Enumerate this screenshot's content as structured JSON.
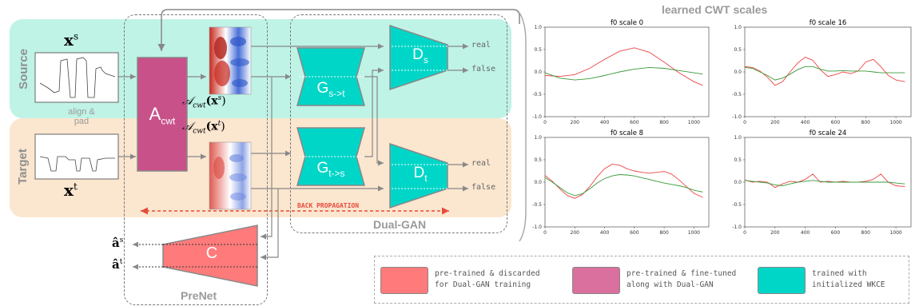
{
  "bands": {
    "source_label": "Source",
    "target_label": "Target"
  },
  "align_label": "align &\npad",
  "acwt_block": {
    "main": "A",
    "sub": "cwt"
  },
  "acwt_source_math": {
    "a": "𝒜",
    "sub": "cwt",
    "arg": "(x",
    "sup": "s",
    "close": ")"
  },
  "acwt_target_math": {
    "a": "𝒜",
    "sub": "cwt",
    "arg": "(x",
    "sup": "t",
    "close": ")"
  },
  "x_source": {
    "base": "x",
    "sup": "s"
  },
  "x_target": {
    "base": "x",
    "sup": "t"
  },
  "gen_st": {
    "main": "G",
    "sub": "s->t"
  },
  "gen_ts": {
    "main": "G",
    "sub": "t->s"
  },
  "disc_s": {
    "main": "D",
    "sub": "s"
  },
  "disc_t": {
    "main": "D",
    "sub": "t"
  },
  "outputs": {
    "real": "real",
    "false": "false"
  },
  "back_propagation": "BACK PROPAGATION",
  "dual_gan": "Dual-GAN",
  "prenet": "PreNet",
  "classifier": "C",
  "a_hat_s": {
    "base": "â",
    "sup": "s"
  },
  "a_hat_t": {
    "base": "â",
    "sup": "t"
  },
  "legend": [
    {
      "color": "#ff7b7b",
      "text": "pre-trained & discarded\nfor Dual-GAN training"
    },
    {
      "color": "#d9709e",
      "text": "pre-trained & fine-tuned\nalong with Dual-GAN"
    },
    {
      "color": "#00d6c8",
      "text": "trained with\ninitialized WKCE"
    }
  ],
  "colors": {
    "source_band": "#bff3e6",
    "target_band": "#fbe6cf",
    "acwt": "#c9518a",
    "generator": "#00d6c8",
    "classifier": "#ff7b7b",
    "backprop": "#e84a3a",
    "line_red": "#ee4444",
    "line_green": "#3a9a3a"
  },
  "chart_group_title": "learned CWT scales",
  "chart_data": [
    {
      "type": "line",
      "title": "f0 scale 0",
      "xlim": [
        0,
        1100
      ],
      "ylim": [
        -1.0,
        1.0
      ],
      "xticks": [
        0,
        200,
        400,
        600,
        800,
        1000
      ],
      "yticks": [
        -1.0,
        -0.5,
        0.0,
        0.5,
        1.0
      ],
      "x": [
        0,
        100,
        200,
        300,
        400,
        500,
        600,
        700,
        800,
        900,
        1000,
        1060
      ],
      "series": [
        {
          "color": "red",
          "values": [
            -0.08,
            -0.1,
            -0.06,
            0.08,
            0.28,
            0.46,
            0.54,
            0.44,
            0.22,
            -0.02,
            -0.22,
            -0.3
          ]
        },
        {
          "color": "green",
          "values": [
            -0.02,
            -0.14,
            -0.18,
            -0.15,
            -0.08,
            0.0,
            0.06,
            0.1,
            0.08,
            0.03,
            -0.02,
            -0.05
          ]
        }
      ]
    },
    {
      "type": "line",
      "title": "f0 scale 16",
      "xlim": [
        0,
        1100
      ],
      "ylim": [
        -1.0,
        1.0
      ],
      "xticks": [
        0,
        200,
        400,
        600,
        800,
        1000
      ],
      "yticks": [
        -1.0,
        -0.5,
        0.0,
        0.5,
        1.0
      ],
      "x": [
        0,
        50,
        100,
        150,
        200,
        250,
        300,
        350,
        400,
        450,
        500,
        550,
        600,
        650,
        700,
        750,
        800,
        850,
        900,
        950,
        1000,
        1060
      ],
      "series": [
        {
          "color": "red",
          "values": [
            0.12,
            0.1,
            0.02,
            -0.12,
            -0.3,
            -0.22,
            0.0,
            0.2,
            0.33,
            0.26,
            0.05,
            -0.1,
            -0.06,
            0.0,
            -0.04,
            0.02,
            0.22,
            0.28,
            0.12,
            -0.08,
            -0.18,
            -0.22
          ]
        },
        {
          "color": "green",
          "values": [
            0.1,
            0.08,
            0.0,
            -0.08,
            -0.18,
            -0.14,
            -0.05,
            0.05,
            0.12,
            0.12,
            0.06,
            0.02,
            0.02,
            0.03,
            0.02,
            0.02,
            0.02,
            0.0,
            -0.02,
            -0.02,
            -0.02,
            -0.02
          ]
        }
      ]
    },
    {
      "type": "line",
      "title": "f0 scale 8",
      "xlim": [
        0,
        1100
      ],
      "ylim": [
        -1.0,
        1.0
      ],
      "xticks": [
        0,
        200,
        400,
        600,
        800,
        1000
      ],
      "yticks": [
        -1.0,
        -0.5,
        0.0,
        0.5,
        1.0
      ],
      "x": [
        0,
        50,
        100,
        150,
        200,
        250,
        300,
        350,
        400,
        450,
        500,
        550,
        600,
        650,
        700,
        750,
        800,
        850,
        900,
        950,
        1000,
        1060
      ],
      "series": [
        {
          "color": "red",
          "values": [
            0.15,
            0.02,
            -0.15,
            -0.3,
            -0.36,
            -0.28,
            -0.1,
            0.12,
            0.3,
            0.4,
            0.38,
            0.3,
            0.25,
            0.22,
            0.2,
            0.22,
            0.24,
            0.18,
            0.05,
            -0.1,
            -0.25,
            -0.34
          ]
        },
        {
          "color": "green",
          "values": [
            0.1,
            0.0,
            -0.12,
            -0.24,
            -0.3,
            -0.26,
            -0.15,
            -0.02,
            0.08,
            0.14,
            0.17,
            0.16,
            0.14,
            0.1,
            0.06,
            0.02,
            -0.02,
            -0.05,
            -0.08,
            -0.12,
            -0.18,
            -0.22
          ]
        }
      ]
    },
    {
      "type": "line",
      "title": "f0 scale 24",
      "xlim": [
        0,
        1100
      ],
      "ylim": [
        -1.0,
        1.0
      ],
      "xticks": [
        0,
        200,
        400,
        600,
        800,
        1000
      ],
      "yticks": [
        -1.0,
        -0.5,
        0.0,
        0.5,
        1.0
      ],
      "x": [
        0,
        50,
        100,
        150,
        200,
        250,
        300,
        350,
        400,
        450,
        500,
        550,
        600,
        650,
        700,
        750,
        800,
        850,
        900,
        950,
        1000,
        1060
      ],
      "series": [
        {
          "color": "red",
          "values": [
            0.05,
            0.0,
            0.02,
            0.0,
            -0.12,
            -0.04,
            0.02,
            0.0,
            0.06,
            0.18,
            0.0,
            0.02,
            0.0,
            0.02,
            0.0,
            0.0,
            0.02,
            0.06,
            0.18,
            0.0,
            -0.08,
            -0.1
          ]
        },
        {
          "color": "green",
          "values": [
            0.04,
            0.02,
            0.0,
            -0.02,
            -0.06,
            -0.08,
            -0.04,
            0.0,
            0.02,
            0.04,
            0.02,
            0.0,
            0.0,
            0.0,
            0.0,
            0.0,
            0.0,
            0.0,
            0.0,
            0.0,
            -0.02,
            -0.04
          ]
        }
      ]
    }
  ]
}
